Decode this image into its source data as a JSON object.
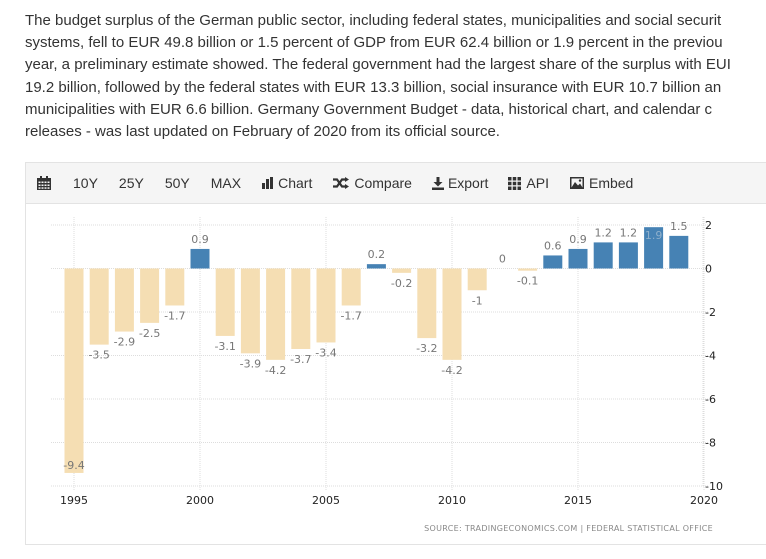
{
  "description": {
    "lines": [
      "The budget surplus of the German public sector, including federal states, municipalities and social securit",
      "systems, fell to EUR 49.8 billion or 1.5 percent of GDP from EUR 62.4 billion or 1.9 percent in the previou",
      "year, a preliminary estimate showed. The federal government had the largest share of the surplus with EUI",
      "19.2 billion, followed by the federal states with EUR 13.3 billion, social insurance with EUR 10.7 billion an",
      "municipalities with EUR 6.6 billion. Germany Government Budget - data, historical chart, and calendar c",
      "releases - was last updated on February of 2020 from its official source."
    ]
  },
  "toolbar": {
    "calendar_icon": "calendar-icon",
    "items": [
      {
        "label": "10Y",
        "icon": null
      },
      {
        "label": "25Y",
        "icon": null
      },
      {
        "label": "50Y",
        "icon": null
      },
      {
        "label": "MAX",
        "icon": null
      },
      {
        "label": "Chart",
        "icon": "bar-chart-icon"
      },
      {
        "label": "Compare",
        "icon": "shuffle-icon"
      },
      {
        "label": "Export",
        "icon": "download-icon"
      },
      {
        "label": "API",
        "icon": "grid-icon"
      },
      {
        "label": "Embed",
        "icon": "image-icon"
      }
    ]
  },
  "colors": {
    "positive": "#4682b4",
    "negative": "#f5deb3",
    "grid": "#dddddd"
  },
  "chart_data": {
    "type": "bar",
    "title": "",
    "xlabel": "",
    "ylabel": "",
    "categories": [
      1995,
      1996,
      1997,
      1998,
      1999,
      2000,
      2001,
      2002,
      2003,
      2004,
      2005,
      2006,
      2007,
      2008,
      2009,
      2010,
      2011,
      2012,
      2013,
      2014,
      2015,
      2016,
      2017,
      2018,
      2019
    ],
    "values": [
      -9.4,
      -3.5,
      -2.9,
      -2.5,
      -1.7,
      0.9,
      -3.1,
      -3.9,
      -4.2,
      -3.7,
      -3.4,
      -1.7,
      0.2,
      -0.2,
      -3.2,
      -4.2,
      -1,
      0,
      -0.1,
      0.6,
      0.9,
      1.2,
      1.2,
      1.9,
      1.5
    ],
    "data_labels": [
      "-9.4",
      "-3.5",
      "-2.9",
      "-2.5",
      "-1.7",
      "0.9",
      "-3.1",
      "-3.9",
      "-4.2",
      "-3.7",
      "-3.4",
      "-1.7",
      "0.2",
      "-0.2",
      "-3.2",
      "-4.2",
      "-1",
      "0",
      "-0.1",
      "0.6",
      "0.9",
      "1.2",
      "1.2",
      "1.9",
      "1.5"
    ],
    "x_ticks": [
      "1995",
      "2000",
      "2005",
      "2010",
      "2015",
      "2020"
    ],
    "x_tick_values": [
      1995,
      2000,
      2005,
      2010,
      2015,
      2020
    ],
    "xlim": [
      1994,
      2020
    ],
    "y_ticks": [
      "2",
      "0",
      "-2",
      "-4",
      "-6",
      "-8",
      "-10"
    ],
    "y_tick_values": [
      2,
      0,
      -2,
      -4,
      -6,
      -8,
      -10
    ],
    "ylim": [
      -10,
      2
    ],
    "y_axis_side": "right",
    "grid": true,
    "legend": "none",
    "source": "SOURCE: TRADINGECONOMICS.COM  |  FEDERAL STATISTICAL OFFICE"
  }
}
